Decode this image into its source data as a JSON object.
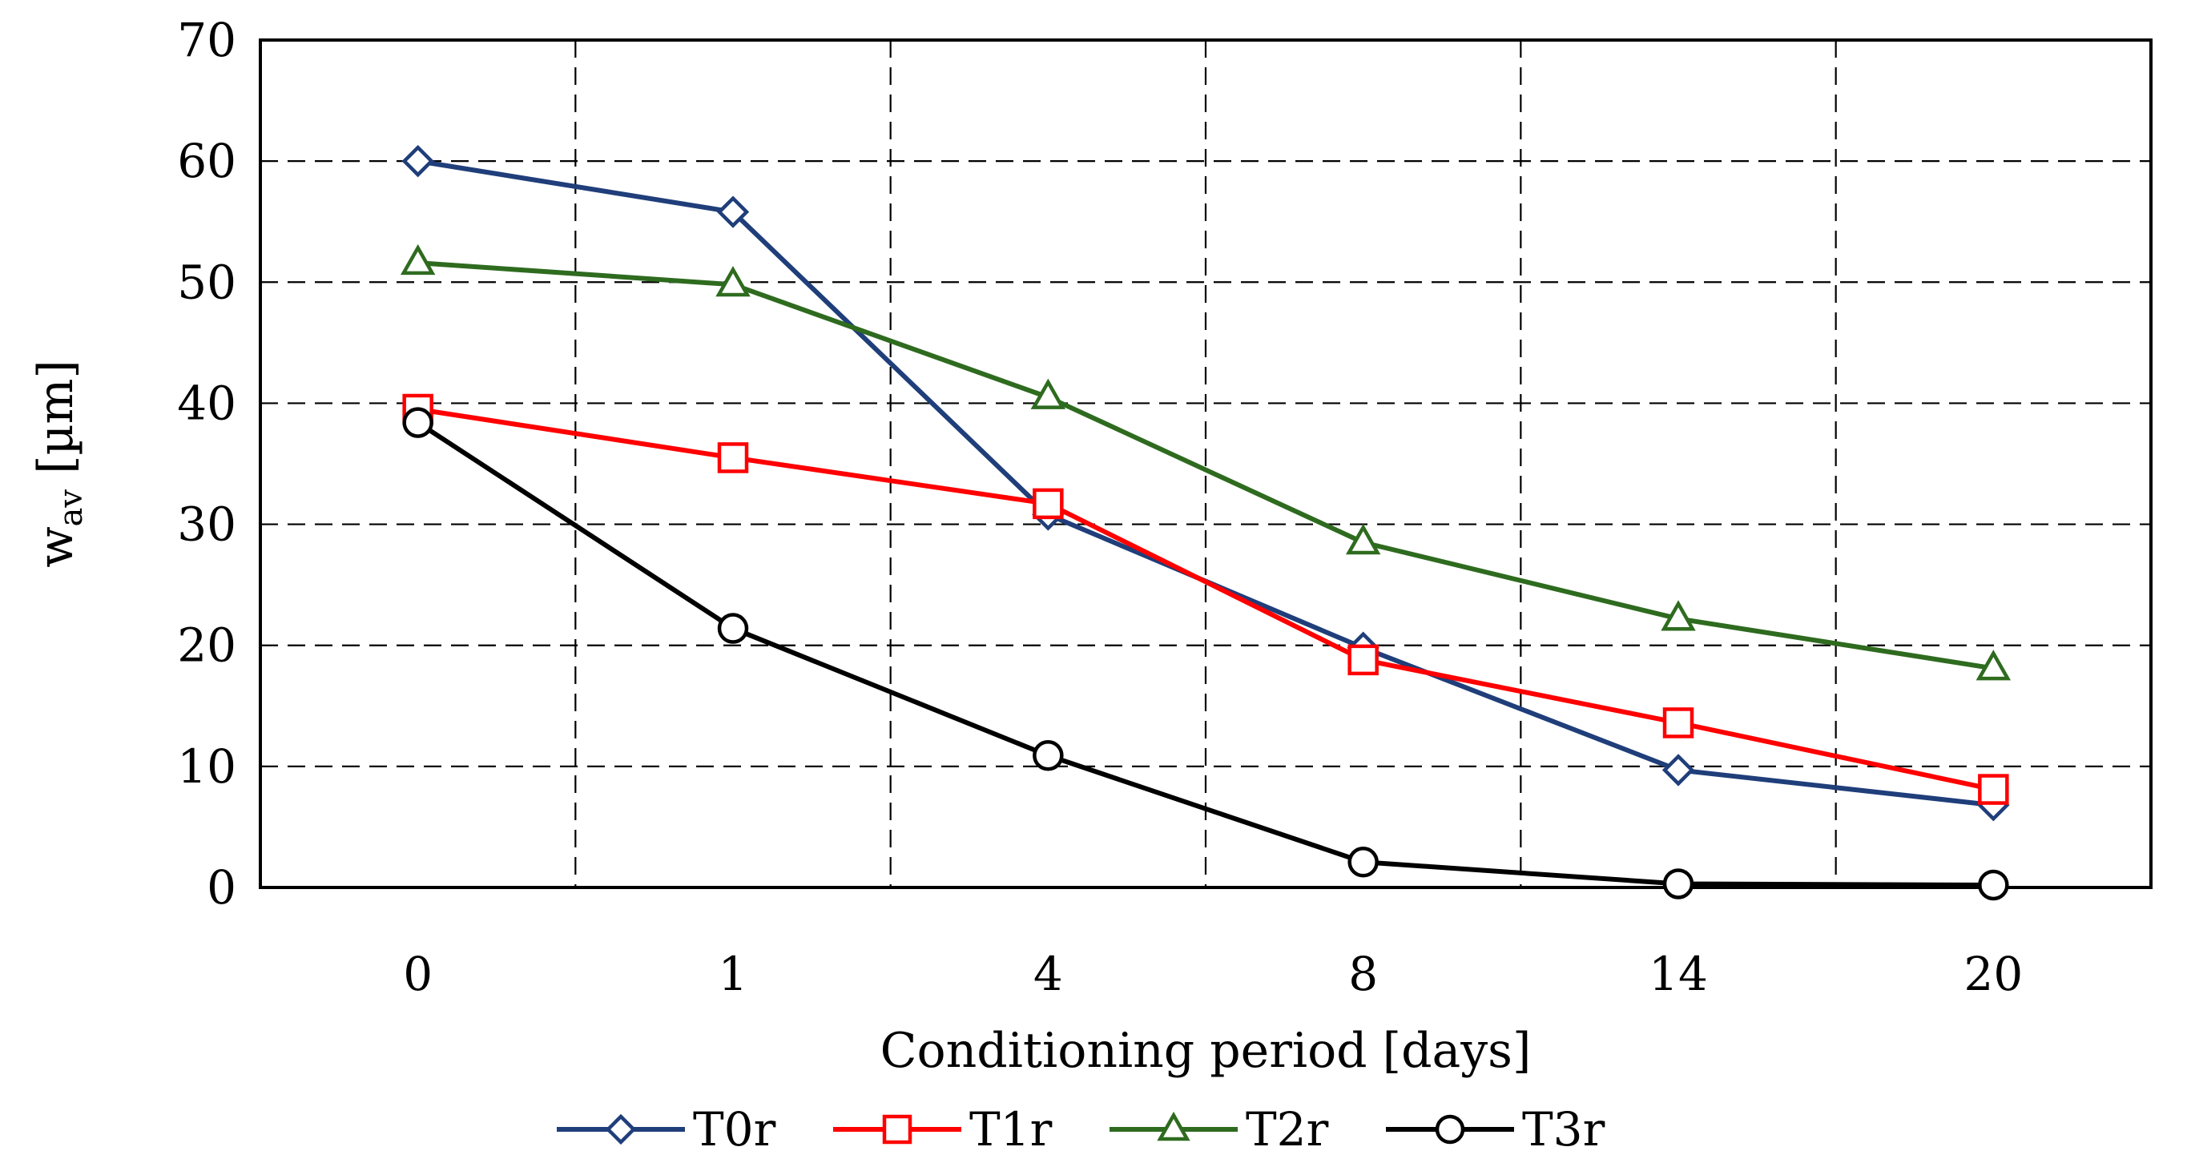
{
  "chart_data": {
    "type": "line",
    "title": "",
    "xlabel": "Conditioning period [days]",
    "ylabel_main": "w",
    "ylabel_sub": "av",
    "ylabel_unit": " [µm]",
    "categories": [
      "0",
      "1",
      "4",
      "8",
      "14",
      "20"
    ],
    "ylim": [
      0,
      70
    ],
    "yticks": [
      0,
      10,
      20,
      30,
      40,
      50,
      60,
      70
    ],
    "grid": true,
    "legend_position": "bottom",
    "series": [
      {
        "name": "T0r",
        "color": "#1F3E7A",
        "marker": "diamond",
        "values": [
          60.0,
          55.8,
          30.8,
          19.8,
          9.7,
          6.8
        ]
      },
      {
        "name": "T1r",
        "color": "#FF0000",
        "marker": "square",
        "values": [
          39.5,
          35.5,
          31.7,
          18.8,
          13.6,
          8.1
        ]
      },
      {
        "name": "T2r",
        "color": "#2E6B1F",
        "marker": "triangle",
        "values": [
          51.6,
          49.8,
          40.5,
          28.5,
          22.2,
          18.1
        ]
      },
      {
        "name": "T3r",
        "color": "#000000",
        "marker": "circle",
        "values": [
          38.4,
          21.4,
          10.9,
          2.1,
          0.3,
          0.2
        ]
      }
    ]
  }
}
